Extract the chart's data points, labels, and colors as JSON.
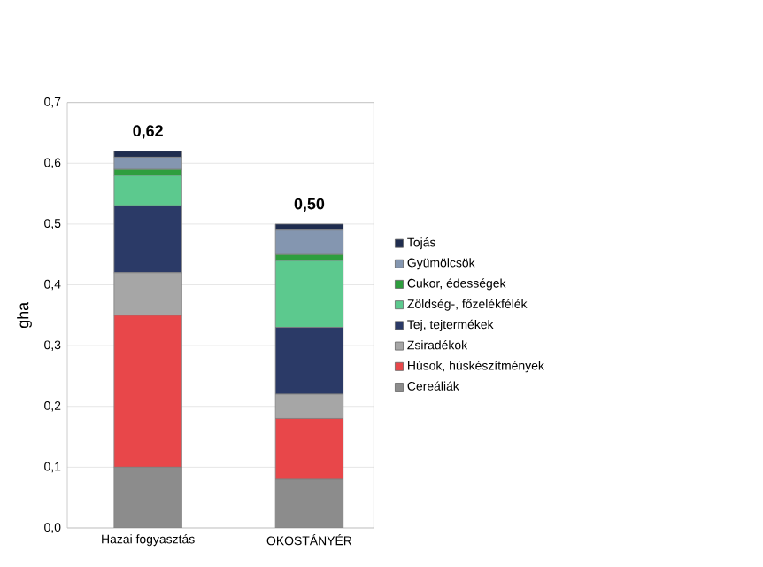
{
  "chart_data": {
    "type": "bar",
    "stacked": true,
    "ylabel": "gha",
    "categories": [
      "Hazai fogyasztás",
      "OKOSTÁNYÉR"
    ],
    "series": [
      {
        "name": "Cereáliák",
        "color": "#8c8c8c",
        "values": [
          0.1,
          0.08
        ]
      },
      {
        "name": "Húsok, húskészítmények",
        "color": "#e8474a",
        "values": [
          0.25,
          0.1
        ]
      },
      {
        "name": "Zsiradékok",
        "color": "#a6a6a6",
        "values": [
          0.07,
          0.04
        ]
      },
      {
        "name": "Tej, tejtermékek",
        "color": "#2b3a67",
        "values": [
          0.11,
          0.11
        ]
      },
      {
        "name": "Zöldség-, főzelékfélék",
        "color": "#5cc98e",
        "values": [
          0.05,
          0.11
        ]
      },
      {
        "name": "Cukor, édességek",
        "color": "#2e9e3e",
        "values": [
          0.01,
          0.01
        ]
      },
      {
        "name": "Gyümölcsök",
        "color": "#8496b0",
        "values": [
          0.02,
          0.04
        ]
      },
      {
        "name": "Tojás",
        "color": "#1f2d4f",
        "values": [
          0.01,
          0.01
        ]
      }
    ],
    "totals": [
      "0,62",
      "0,50"
    ],
    "ylim": [
      0,
      0.7
    ],
    "yticks": [
      {
        "value": 0,
        "label": "0,0"
      },
      {
        "value": 0.1,
        "label": "0,1"
      },
      {
        "value": 0.2,
        "label": "0,2"
      },
      {
        "value": 0.3,
        "label": "0,3"
      },
      {
        "value": 0.4,
        "label": "0,4"
      },
      {
        "value": 0.5,
        "label": "0,5"
      },
      {
        "value": 0.6,
        "label": "0,6"
      },
      {
        "value": 0.7,
        "label": "0,7"
      }
    ],
    "grid": "y",
    "legend": "right"
  }
}
